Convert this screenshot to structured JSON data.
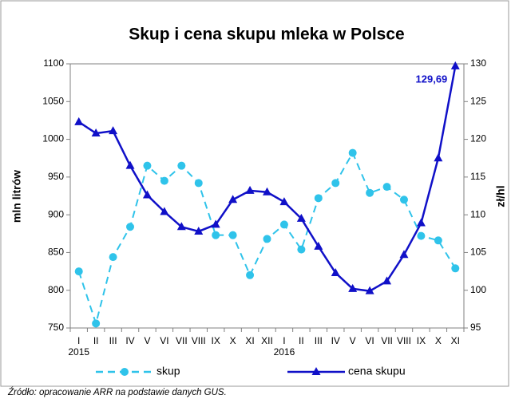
{
  "chart_data": {
    "type": "line",
    "title": "Skup i cena skupu mleka w Polsce",
    "y_label": "mln litrów",
    "y2_label": "zł/hl",
    "source": "Źródło: opracowanie ARR na podstawie danych GUS.",
    "categories": [
      "I",
      "II",
      "III",
      "IV",
      "V",
      "VI",
      "VII",
      "VIII",
      "IX",
      "X",
      "XI",
      "XII",
      "I",
      "II",
      "III",
      "IV",
      "V",
      "VI",
      "VII",
      "VIII",
      "IX",
      "X",
      "XI"
    ],
    "years": [
      "2015",
      null,
      null,
      null,
      null,
      null,
      null,
      null,
      null,
      null,
      null,
      null,
      "2016",
      null,
      null,
      null,
      null,
      null,
      null,
      null,
      null,
      null,
      null
    ],
    "ylim": [
      750,
      1100
    ],
    "yticks": [
      750,
      800,
      850,
      900,
      950,
      1000,
      1050,
      1100
    ],
    "y2lim": [
      95,
      130
    ],
    "y2ticks": [
      95,
      100,
      105,
      110,
      115,
      120,
      125,
      130
    ],
    "series": [
      {
        "name": "skup",
        "color": "#2fc3ea",
        "marker": "circle",
        "dashed": true,
        "axis": "y",
        "values": [
          825,
          756,
          844,
          884,
          965,
          945,
          965,
          942,
          873,
          873,
          820,
          868,
          887,
          854,
          922,
          942,
          982,
          929,
          937,
          920,
          872,
          866,
          829
        ]
      },
      {
        "name": "cena skupu",
        "color": "#1010c8",
        "marker": "triangle",
        "dashed": false,
        "axis": "y2",
        "values": [
          122.3,
          120.8,
          121.1,
          116.5,
          112.6,
          110.4,
          108.4,
          107.8,
          108.7,
          112.0,
          113.2,
          113.0,
          111.7,
          109.5,
          105.8,
          102.3,
          100.2,
          99.9,
          101.2,
          104.7,
          108.9,
          117.5,
          129.69
        ],
        "value_labels": [
          null,
          null,
          null,
          null,
          null,
          null,
          null,
          null,
          null,
          null,
          null,
          null,
          null,
          null,
          null,
          null,
          null,
          null,
          null,
          null,
          null,
          null,
          "129,69"
        ]
      }
    ]
  }
}
